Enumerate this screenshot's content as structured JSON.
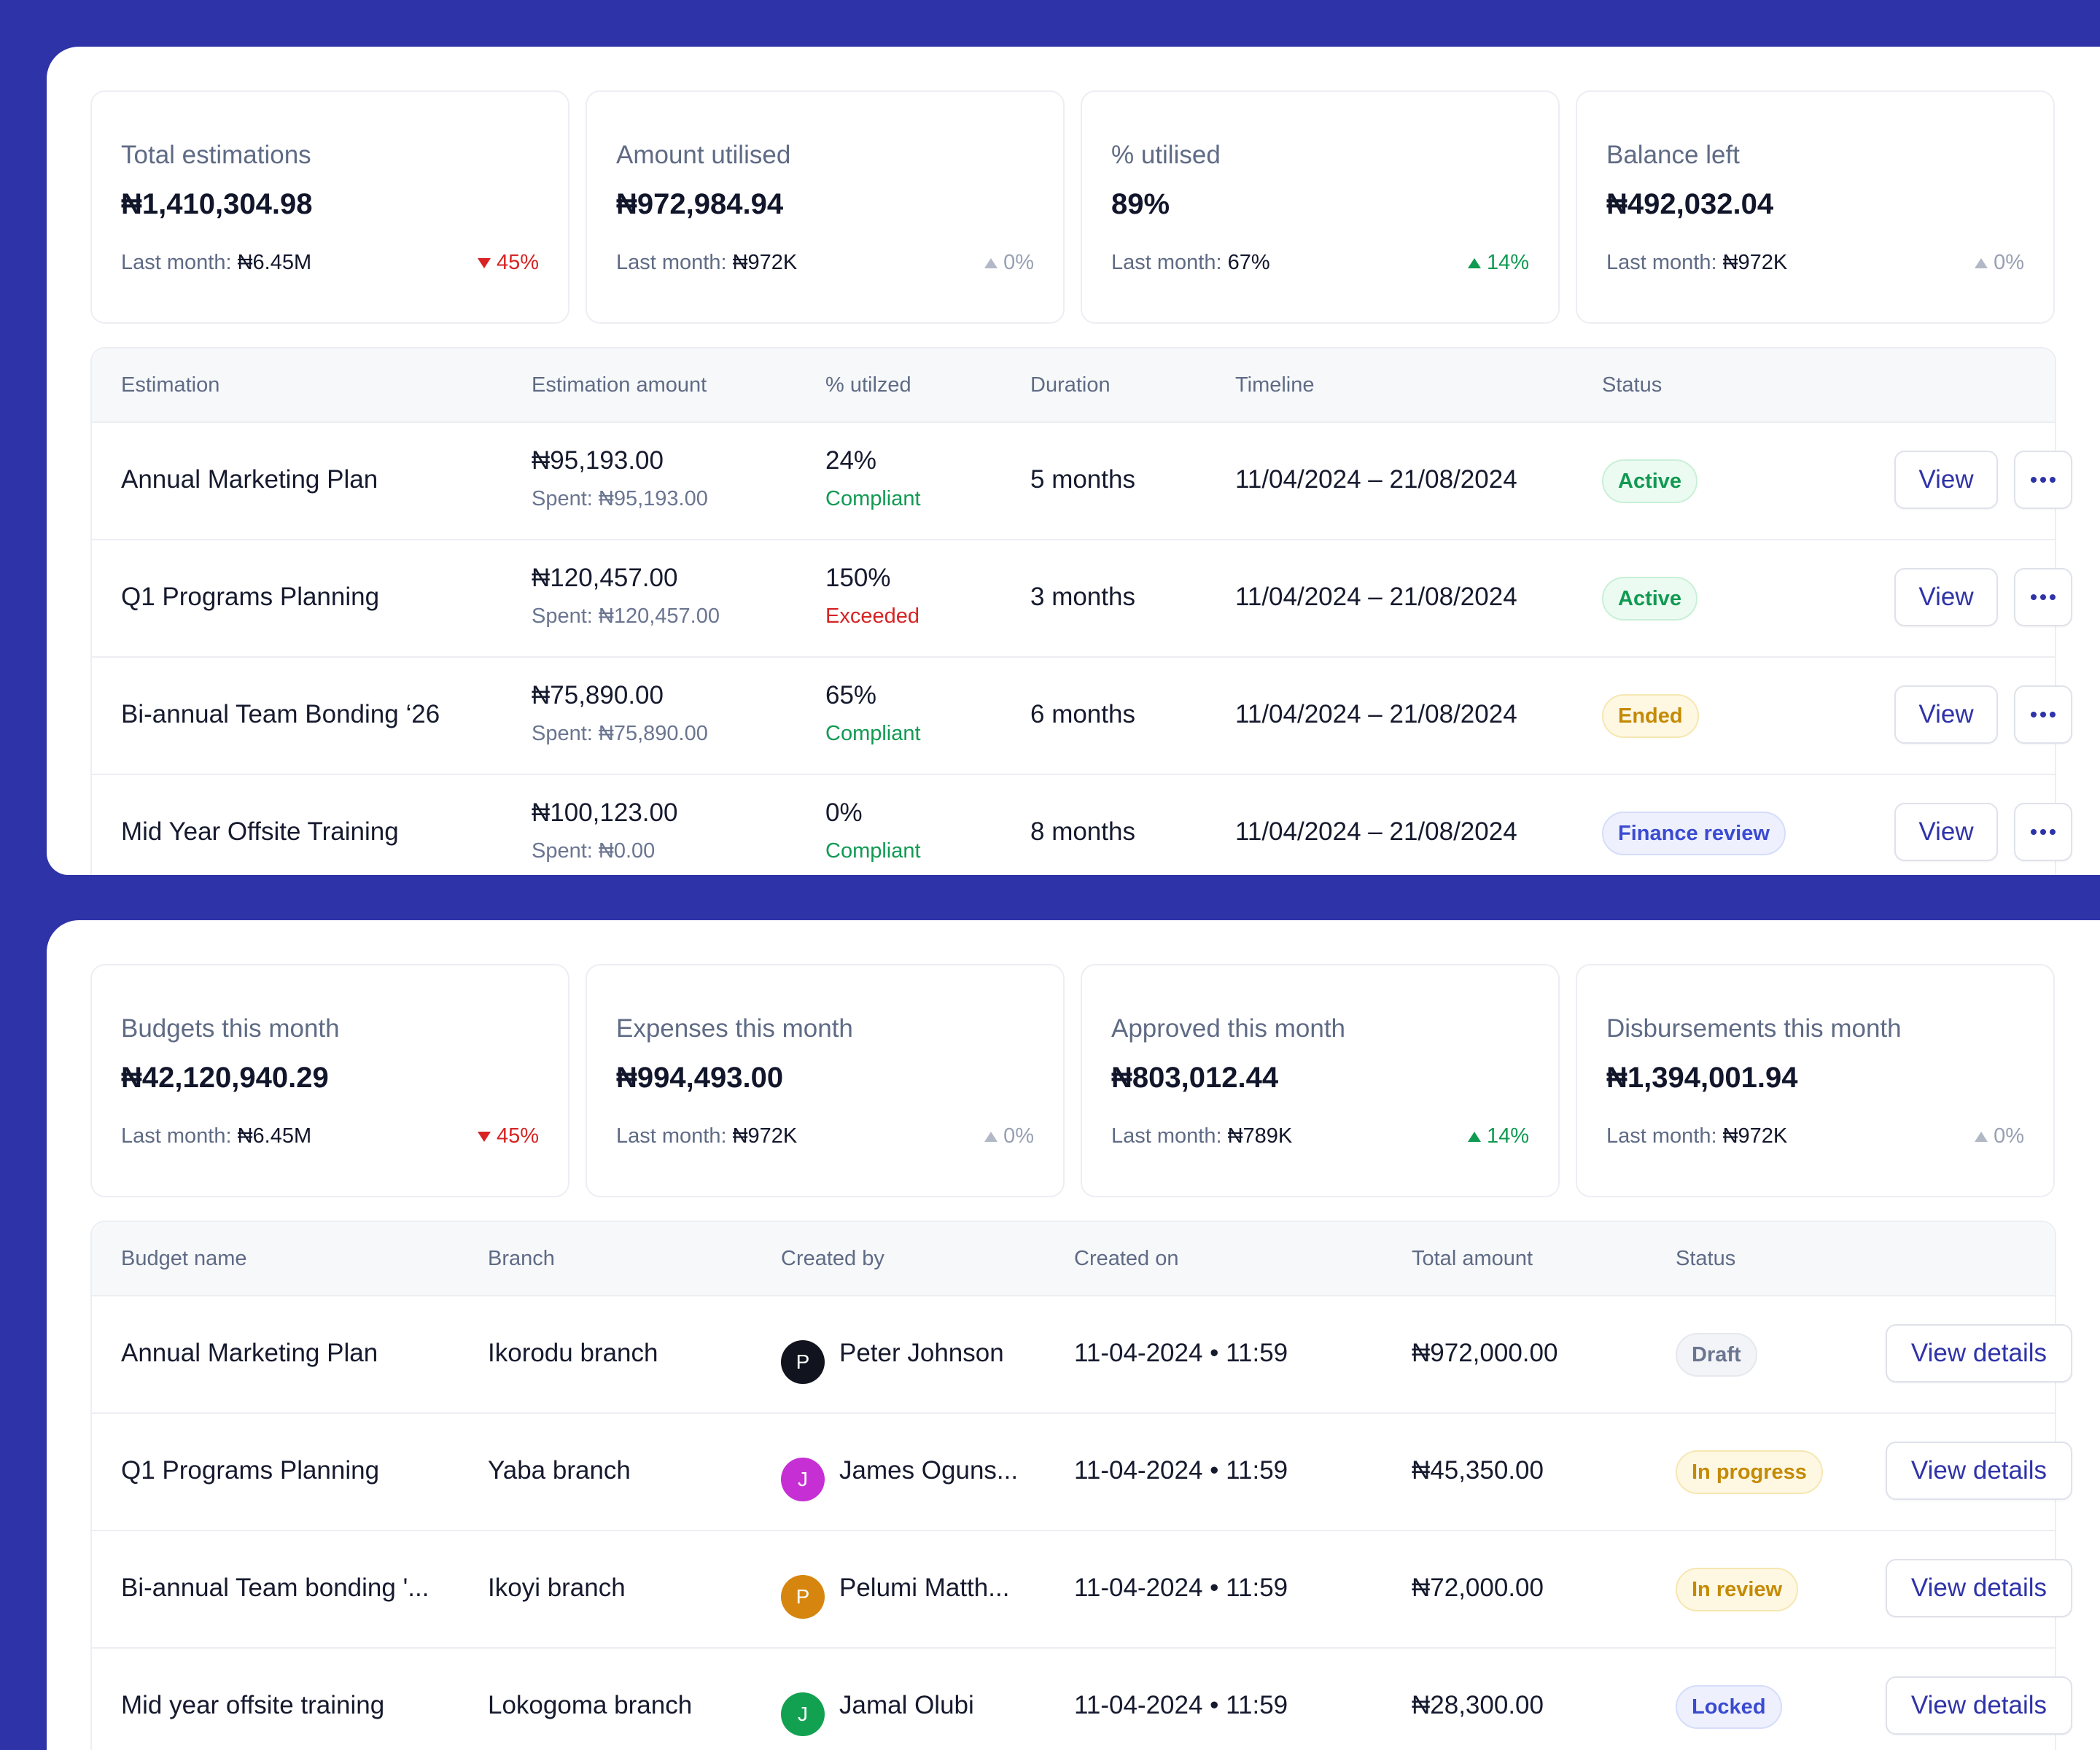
{
  "panel1": {
    "stats": [
      {
        "label": "Total estimations",
        "value": "₦1,410,304.98",
        "last_label": "Last month:",
        "last_value": "₦6.45M",
        "delta": "45%",
        "trend": "down"
      },
      {
        "label": "Amount utilised",
        "value": "₦972,984.94",
        "last_label": "Last month:",
        "last_value": "₦972K",
        "delta": "0%",
        "trend": "flat"
      },
      {
        "label": "% utilised",
        "value": "89%",
        "last_label": "Last month:",
        "last_value": "67%",
        "delta": "14%",
        "trend": "up"
      },
      {
        "label": "Balance left",
        "value": "₦492,032.04",
        "last_label": "Last month:",
        "last_value": "₦972K",
        "delta": "0%",
        "trend": "flat"
      }
    ],
    "headers": [
      "Estimation",
      "Estimation amount",
      "% utilzed",
      "Duration",
      "Timeline",
      "Status"
    ],
    "rows": [
      {
        "name": "Annual Marketing Plan",
        "amount": "₦95,193.00",
        "spent": "Spent: ₦95,193.00",
        "pct": "24%",
        "compliance": "Compliant",
        "duration": "5 months",
        "timeline": "11/04/2024 – 21/08/2024",
        "status": "Active",
        "view": "View"
      },
      {
        "name": "Q1 Programs Planning",
        "amount": "₦120,457.00",
        "spent": "Spent: ₦120,457.00",
        "pct": "150%",
        "compliance": "Exceeded",
        "duration": "3 months",
        "timeline": "11/04/2024 – 21/08/2024",
        "status": "Active",
        "view": "View"
      },
      {
        "name": "Bi-annual Team Bonding ‘26",
        "amount": "₦75,890.00",
        "spent": "Spent: ₦75,890.00",
        "pct": "65%",
        "compliance": "Compliant",
        "duration": "6 months",
        "timeline": "11/04/2024 – 21/08/2024",
        "status": "Ended",
        "view": "View"
      },
      {
        "name": "Mid Year Offsite Training",
        "amount": "₦100,123.00",
        "spent": "Spent: ₦0.00",
        "pct": "0%",
        "compliance": "Compliant",
        "duration": "8 months",
        "timeline": "11/04/2024 – 21/08/2024",
        "status": "Finance review",
        "view": "View"
      }
    ]
  },
  "panel2": {
    "stats": [
      {
        "label": "Budgets this month",
        "value": "₦42,120,940.29",
        "last_label": "Last month:",
        "last_value": "₦6.45M",
        "delta": "45%",
        "trend": "down"
      },
      {
        "label": "Expenses this month",
        "value": "₦994,493.00",
        "last_label": "Last month:",
        "last_value": "₦972K",
        "delta": "0%",
        "trend": "flat"
      },
      {
        "label": "Approved this month",
        "value": "₦803,012.44",
        "last_label": "Last month:",
        "last_value": "₦789K",
        "delta": "14%",
        "trend": "up"
      },
      {
        "label": "Disbursements this month",
        "value": "₦1,394,001.94",
        "last_label": "Last month:",
        "last_value": "₦972K",
        "delta": "0%",
        "trend": "flat"
      }
    ],
    "headers": [
      "Budget name",
      "Branch",
      "Created by",
      "Created on",
      "Total amount",
      "Status"
    ],
    "rows": [
      {
        "name": "Annual Marketing Plan",
        "branch": "Ikorodu branch",
        "initial": "P",
        "creator": "Peter Johnson",
        "created_on": "11-04-2024 • 11:59",
        "total": "₦972,000.00",
        "status": "Draft",
        "action": "View details"
      },
      {
        "name": "Q1 Programs Planning",
        "branch": "Yaba branch",
        "initial": "J",
        "creator": "James Oguns...",
        "created_on": "11-04-2024 • 11:59",
        "total": "₦45,350.00",
        "status": "In progress",
        "action": "View details"
      },
      {
        "name": "Bi-annual Team bonding '...",
        "branch": "Ikoyi branch",
        "initial": "P",
        "creator": "Pelumi Matth...",
        "created_on": "11-04-2024 • 11:59",
        "total": "₦72,000.00",
        "status": "In review",
        "action": "View details"
      },
      {
        "name": "Mid year offsite training",
        "branch": "Lokogoma branch",
        "initial": "J",
        "creator": "Jamal Olubi",
        "created_on": "11-04-2024 • 11:59",
        "total": "₦28,300.00",
        "status": "Locked",
        "action": "View details"
      }
    ]
  },
  "colors": {
    "background": "#2f33a8",
    "accent": "#2f33a8",
    "positive": "#109a52",
    "negative": "#d72323",
    "avatar_colors": [
      "#11131f",
      "#c62fd4",
      "#d6860e",
      "#12a150"
    ]
  },
  "icons": {
    "more_button": "more-horizontal-icon",
    "trend_down": "triangle-down-icon",
    "trend_up": "triangle-up-icon"
  }
}
